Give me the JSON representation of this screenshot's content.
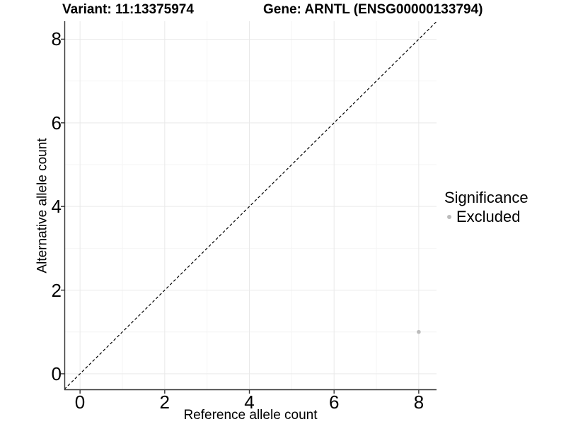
{
  "header": {
    "variant_title": "Variant: 11:13375974",
    "gene_title": "Gene: ARNTL (ENSG00000133794)"
  },
  "axes": {
    "x_label": "Reference allele count",
    "y_label": "Alternative allele count",
    "x_tick_labels": [
      "0",
      "2",
      "4",
      "6",
      "8"
    ],
    "y_tick_labels": [
      "8",
      "6",
      "4",
      "2",
      "0"
    ]
  },
  "legend": {
    "title": "Significance",
    "items": [
      {
        "label": "Excluded",
        "color": "#bcbcbc"
      }
    ]
  },
  "colors": {
    "axis_line": "#333333",
    "grid_major": "#e9e9e9",
    "grid_minor": "#f4f4f4",
    "identity_line": "#000000",
    "point": "#bcbcbc",
    "text": "#000000"
  },
  "chart_data": {
    "type": "scatter",
    "title": "Variant: 11:13375974 | Gene: ARNTL (ENSG00000133794)",
    "xlabel": "Reference allele count",
    "ylabel": "Alternative allele count",
    "xlim": [
      -0.37,
      8.42
    ],
    "ylim": [
      -0.39,
      8.43
    ],
    "x_ticks": [
      0,
      2,
      4,
      6,
      8
    ],
    "y_ticks": [
      0,
      2,
      4,
      6,
      8
    ],
    "x_minor_ticks": [
      1,
      3,
      5,
      7
    ],
    "y_minor_ticks": [
      1,
      3,
      5,
      7
    ],
    "grid": true,
    "legend_position": "right",
    "reference_line": {
      "type": "identity",
      "slope": 1,
      "intercept": 0,
      "style": "dashed"
    },
    "series": [
      {
        "name": "Excluded",
        "color": "#bcbcbc",
        "point_radius": 2.8,
        "points": [
          {
            "x": 8,
            "y": 1
          }
        ]
      }
    ]
  }
}
